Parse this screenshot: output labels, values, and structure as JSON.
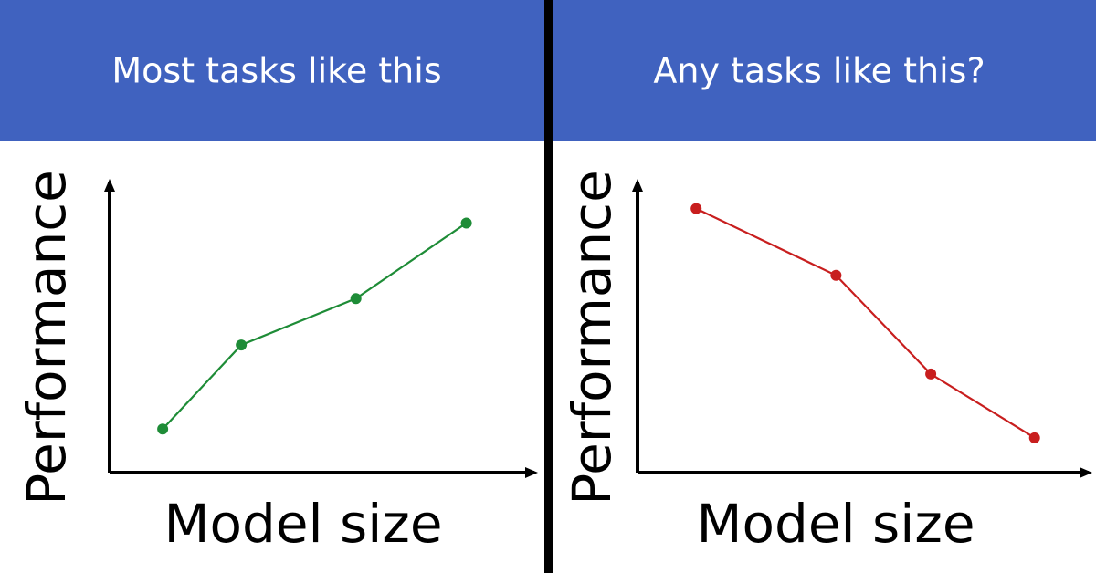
{
  "chart_data": [
    {
      "type": "line",
      "title": "Most tasks like this",
      "xlabel": "Model size",
      "ylabel": "Performance",
      "x": [
        12.5,
        31,
        58,
        84
      ],
      "values": [
        15,
        44,
        60,
        86
      ],
      "color": "#1e8c37",
      "xlim": [
        0,
        100
      ],
      "ylim": [
        0,
        100
      ]
    },
    {
      "type": "line",
      "title": "Any tasks like this?",
      "xlabel": "Model size",
      "ylabel": "Performance",
      "x": [
        13,
        44,
        65,
        88
      ],
      "values": [
        91,
        68,
        34,
        12
      ],
      "color": "#c81e1e",
      "xlim": [
        0,
        100
      ],
      "ylim": [
        0,
        100
      ]
    }
  ]
}
